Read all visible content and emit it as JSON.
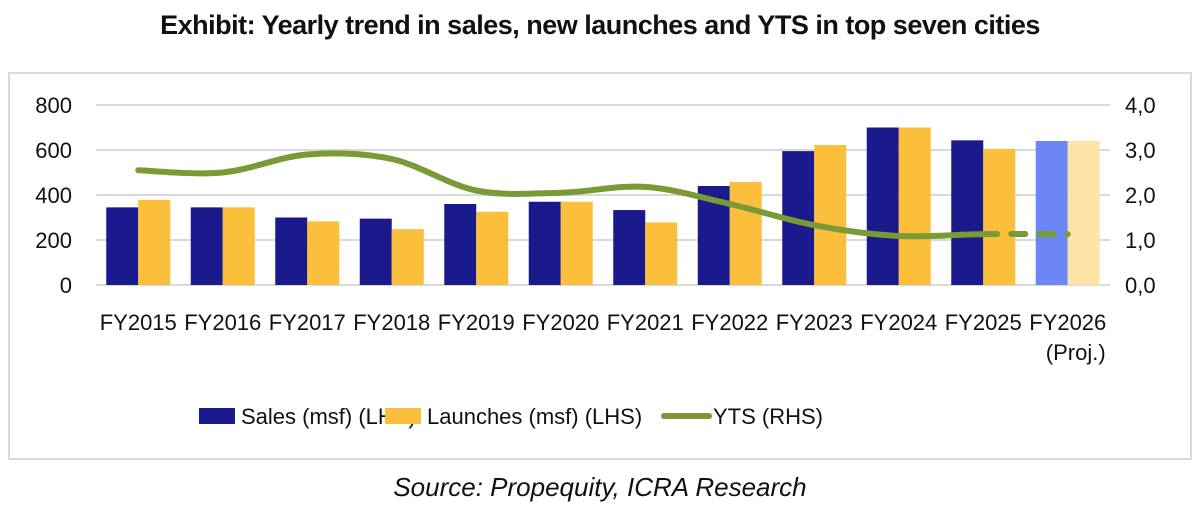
{
  "title": "Exhibit: Yearly trend in sales, new launches and YTS in top seven cities",
  "source": "Source: Propequity, ICRA Research",
  "colors": {
    "sales": "#1a1a8c",
    "launches": "#fbbf3c",
    "sales_proj": "#6b87f5",
    "launches_proj": "#fde4a6",
    "yts": "#7a9a35",
    "grid": "#d9d9d9"
  },
  "legend": [
    {
      "label": "Sales (msf) (LHS)",
      "type": "bar",
      "color": "#1a1a8c"
    },
    {
      "label": "Launches (msf) (LHS)",
      "type": "bar",
      "color": "#fbbf3c"
    },
    {
      "label": "YTS (RHS)",
      "type": "line",
      "color": "#7a9a35"
    }
  ],
  "axes": {
    "left_ticks": [
      "0",
      "200",
      "400",
      "600",
      "800"
    ],
    "right_ticks": [
      "0,0",
      "1,0",
      "2,0",
      "3,0",
      "4,0"
    ]
  },
  "chart_data": {
    "type": "bar",
    "title": "Exhibit: Yearly trend in sales, new launches and YTS in top seven cities",
    "categories": [
      "FY2015",
      "FY2016",
      "FY2017",
      "FY2018",
      "FY2019",
      "FY2020",
      "FY2021",
      "FY2022",
      "FY2023",
      "FY2024",
      "FY2025",
      "FY2026 (Proj.)"
    ],
    "category_lines": [
      [
        "FY2015"
      ],
      [
        "FY2016"
      ],
      [
        "FY2017"
      ],
      [
        "FY2018"
      ],
      [
        "FY2019"
      ],
      [
        "FY2020"
      ],
      [
        "FY2021"
      ],
      [
        "FY2022"
      ],
      [
        "FY2023"
      ],
      [
        "FY2024"
      ],
      [
        "FY2025"
      ],
      [
        "FY2026",
        "(Proj.)"
      ]
    ],
    "series": [
      {
        "name": "Sales (msf) (LHS)",
        "type": "bar",
        "axis": "left",
        "values": [
          345,
          345,
          300,
          295,
          360,
          370,
          333,
          440,
          595,
          700,
          643,
          640
        ]
      },
      {
        "name": "Launches (msf) (LHS)",
        "type": "bar",
        "axis": "left",
        "values": [
          378,
          345,
          283,
          248,
          325,
          370,
          278,
          458,
          622,
          700,
          605,
          640
        ]
      },
      {
        "name": "YTS (RHS)",
        "type": "line",
        "axis": "right",
        "values": [
          2.55,
          2.5,
          2.9,
          2.8,
          2.1,
          2.05,
          2.18,
          1.8,
          1.33,
          1.09,
          1.13,
          1.13
        ],
        "dashed_from_index": 10
      }
    ],
    "xlabel": "",
    "ylabel": "",
    "ylim": [
      0,
      800
    ],
    "y2lim": [
      0,
      4.0
    ],
    "grid": true,
    "legend_position": "bottom",
    "projected_category_index": 11
  }
}
